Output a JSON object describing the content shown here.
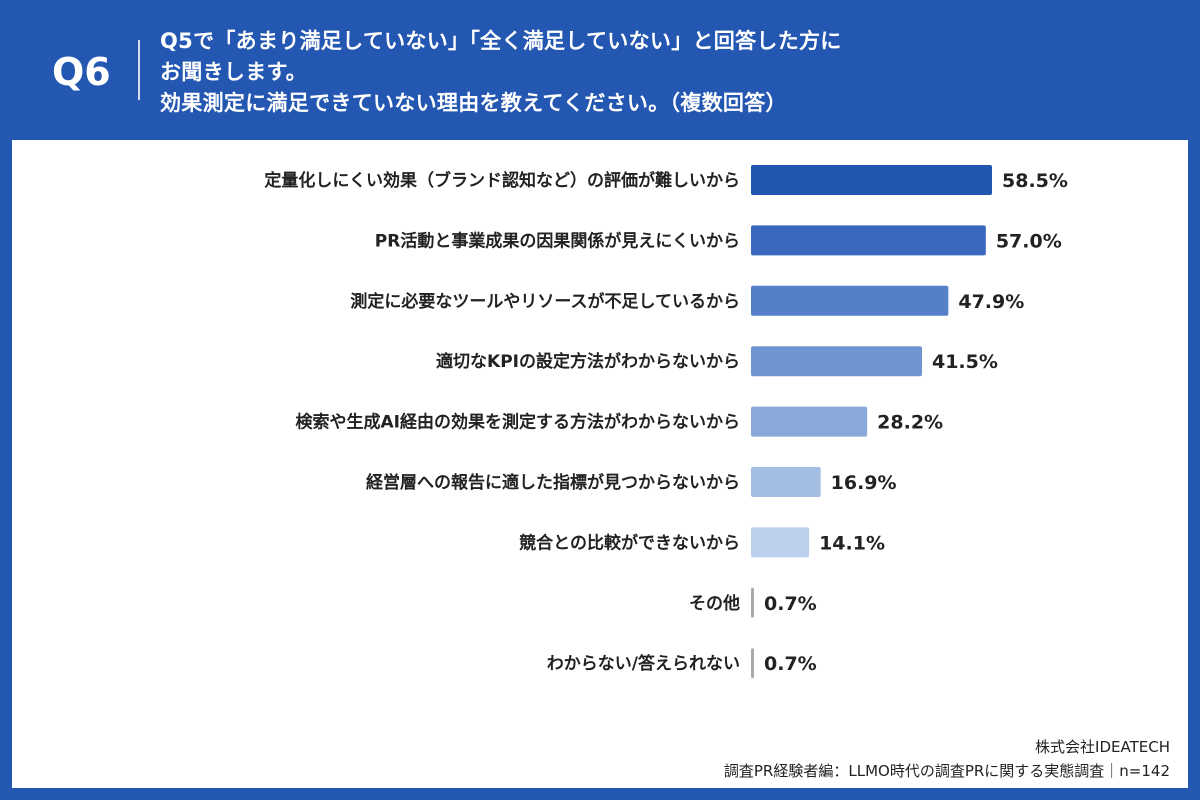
{
  "header": {
    "question_no": "Q6",
    "title_lines": [
      "Q5で「あまり満足していない」「全く満足していない」と回答した方に",
      "お聞きします。",
      "効果測定に満足できていない理由を教えてください。（複数回答）"
    ]
  },
  "chart_data": {
    "type": "bar",
    "orientation": "horizontal",
    "categories": [
      "定量化しにくい効果（ブランド認知など）の評価が難しいから",
      "PR活動と事業成果の因果関係が見えにくいから",
      "測定に必要なツールやリソースが不足しているから",
      "適切なKPIの設定方法がわからないから",
      "検索や生成AI経由の効果を測定する方法がわからないから",
      "経営層への報告に適した指標が見つからないから",
      "競合との比較ができないから",
      "その他",
      "わからない/答えられない"
    ],
    "values": [
      58.5,
      57.0,
      47.9,
      41.5,
      28.2,
      16.9,
      14.1,
      0.7,
      0.7
    ],
    "value_labels": [
      "58.5%",
      "57.0%",
      "47.9%",
      "41.5%",
      "28.2%",
      "16.9%",
      "14.1%",
      "0.7%",
      "0.7%"
    ],
    "colors": [
      "#2255b0",
      "#3a68bf",
      "#5580c8",
      "#7094d0",
      "#8aa8da",
      "#a3bde3",
      "#bcd1ee",
      "#aaaaaa",
      "#aaaaaa"
    ],
    "xlim": [
      0,
      100
    ],
    "grid": false
  },
  "footer": {
    "company": "株式会社IDEATECH",
    "source": "調査PR経験者編：LLMO時代の調査PRに関する実態調査｜n=142"
  }
}
